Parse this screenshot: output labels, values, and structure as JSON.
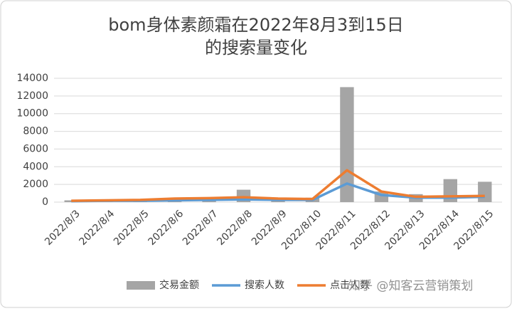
{
  "chart_data": {
    "type": "bar-line",
    "title_lines": [
      "bom身体素颜霜在2022年8月3到15日",
      "的搜索量变化"
    ],
    "categories": [
      "2022/8/3",
      "2022/8/4",
      "2022/8/5",
      "2022/8/6",
      "2022/8/7",
      "2022/8/8",
      "2022/8/9",
      "2022/8/10",
      "2022/8/11",
      "2022/8/12",
      "2022/8/13",
      "2022/8/14",
      "2022/8/15"
    ],
    "series": [
      {
        "name": "交易金额",
        "type": "bar",
        "color": "#a5a5a5",
        "values": [
          200,
          200,
          200,
          300,
          300,
          1400,
          300,
          500,
          13000,
          1200,
          900,
          2600,
          2300
        ]
      },
      {
        "name": "搜索人数",
        "type": "line",
        "color": "#5b9bd5",
        "values": [
          100,
          150,
          150,
          200,
          250,
          300,
          250,
          250,
          2100,
          800,
          500,
          500,
          600
        ]
      },
      {
        "name": "点击人数",
        "type": "line",
        "color": "#ed7d31",
        "values": [
          150,
          200,
          250,
          400,
          450,
          550,
          400,
          350,
          3600,
          1200,
          600,
          650,
          700
        ]
      }
    ],
    "ylim": [
      0,
      14000
    ],
    "yticks": [
      0,
      2000,
      4000,
      6000,
      8000,
      10000,
      12000,
      14000
    ],
    "grid": true,
    "legend": "bottom",
    "watermark": "知乎 @知客云营销策划"
  }
}
